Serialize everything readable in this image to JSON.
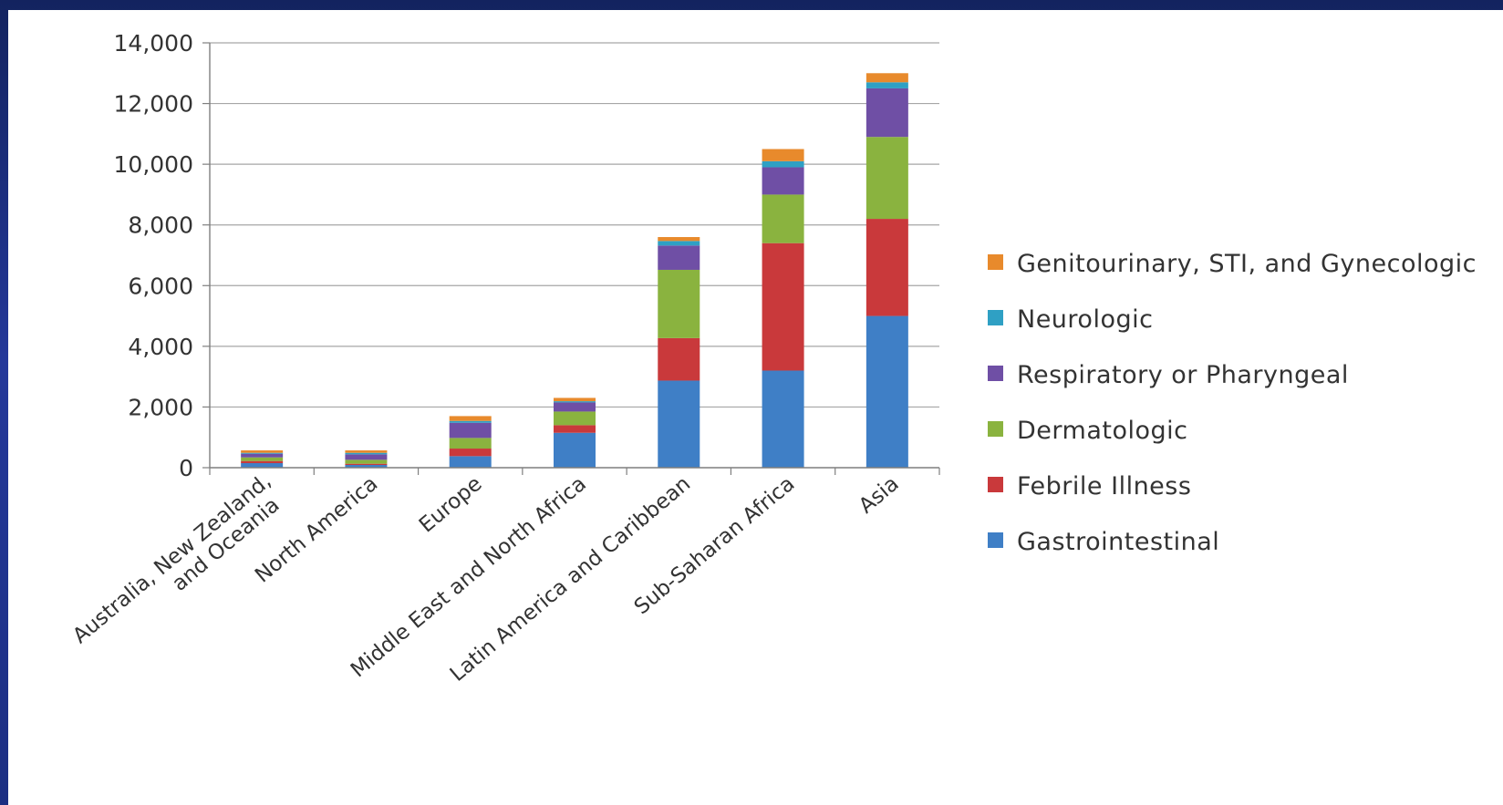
{
  "chart_data": {
    "type": "bar",
    "stacked": true,
    "categories": [
      "Australia, New Zealand, and Oceania",
      "North America",
      "Europe",
      "Middle East and North Africa",
      "Latin America and Caribbean",
      "Sub-Saharan Africa",
      "Asia"
    ],
    "category_lines": [
      [
        "Australia, New Zealand,",
        "and Oceania"
      ],
      [
        "North America"
      ],
      [
        "Europe"
      ],
      [
        "Middle East and North Africa"
      ],
      [
        "Latin America and Caribbean"
      ],
      [
        "Sub-Saharan Africa"
      ],
      [
        "Asia"
      ]
    ],
    "series": [
      {
        "name": "Gastrointestinal",
        "color": "#3f7fc6",
        "values": [
          150,
          90,
          380,
          1150,
          2870,
          3200,
          5000
        ]
      },
      {
        "name": "Febrile Illness",
        "color": "#c9393b",
        "values": [
          70,
          40,
          250,
          250,
          1400,
          4200,
          3200
        ]
      },
      {
        "name": "Dermatologic",
        "color": "#8ab33f",
        "values": [
          120,
          130,
          350,
          450,
          2250,
          1600,
          2700
        ]
      },
      {
        "name": "Respiratory or Pharyngeal",
        "color": "#6f4fa5",
        "values": [
          120,
          180,
          500,
          300,
          800,
          900,
          1600
        ]
      },
      {
        "name": "Neurologic",
        "color": "#2fa0c4",
        "values": [
          30,
          50,
          60,
          40,
          150,
          200,
          200
        ]
      },
      {
        "name": "Genitourinary, STI, and Gynecologic",
        "color": "#e88a2c",
        "values": [
          80,
          80,
          160,
          110,
          130,
          400,
          300
        ]
      }
    ],
    "legend_order": [
      5,
      4,
      3,
      2,
      1,
      0
    ],
    "yticks": [
      "0",
      "2,000",
      "4,000",
      "6,000",
      "8,000",
      "10,000",
      "12,000",
      "14,000"
    ],
    "ylim": [
      0,
      14000
    ],
    "grid": true,
    "legend_position": "right",
    "title": "",
    "xlabel": "",
    "ylabel": ""
  }
}
